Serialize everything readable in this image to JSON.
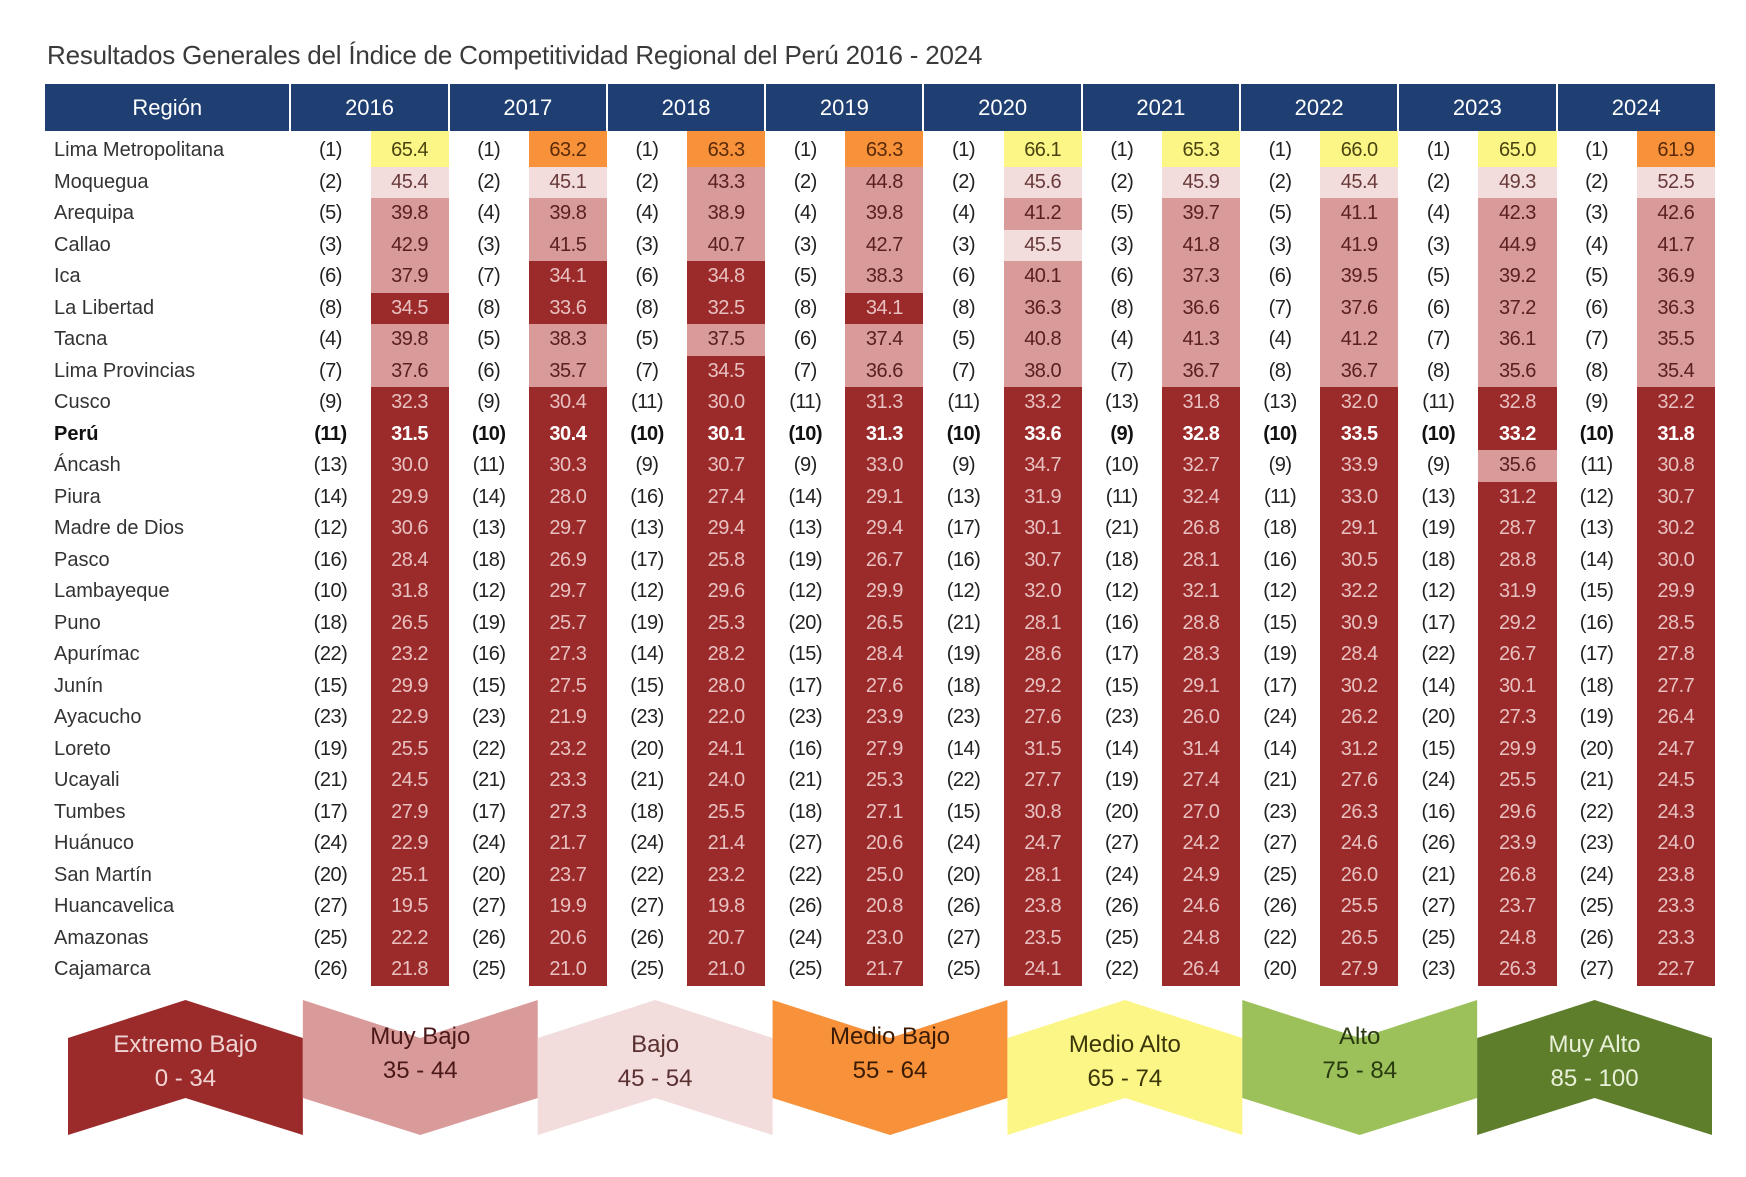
{
  "title": "Resultados Generales del Índice de Competitividad Regional del Perú 2016 - 2024",
  "table": {
    "region_header": "Región",
    "years": [
      "2016",
      "2017",
      "2018",
      "2019",
      "2020",
      "2021",
      "2022",
      "2023",
      "2024"
    ],
    "rows": [
      {
        "region": "Lima Metropolitana",
        "ranks": [
          "(1)",
          "(1)",
          "(1)",
          "(1)",
          "(1)",
          "(1)",
          "(1)",
          "(1)",
          "(1)"
        ],
        "scores": [
          "65.4",
          "63.2",
          "63.3",
          "63.3",
          "66.1",
          "65.3",
          "66.0",
          "65.0",
          "61.9"
        ]
      },
      {
        "region": "Moquegua",
        "ranks": [
          "(2)",
          "(2)",
          "(2)",
          "(2)",
          "(2)",
          "(2)",
          "(2)",
          "(2)",
          "(2)"
        ],
        "scores": [
          "45.4",
          "45.1",
          "43.3",
          "44.8",
          "45.6",
          "45.9",
          "45.4",
          "49.3",
          "52.5"
        ]
      },
      {
        "region": "Arequipa",
        "ranks": [
          "(5)",
          "(4)",
          "(4)",
          "(4)",
          "(4)",
          "(5)",
          "(5)",
          "(4)",
          "(3)"
        ],
        "scores": [
          "39.8",
          "39.8",
          "38.9",
          "39.8",
          "41.2",
          "39.7",
          "41.1",
          "42.3",
          "42.6"
        ]
      },
      {
        "region": "Callao",
        "ranks": [
          "(3)",
          "(3)",
          "(3)",
          "(3)",
          "(3)",
          "(3)",
          "(3)",
          "(3)",
          "(4)"
        ],
        "scores": [
          "42.9",
          "41.5",
          "40.7",
          "42.7",
          "45.5",
          "41.8",
          "41.9",
          "44.9",
          "41.7"
        ]
      },
      {
        "region": "Ica",
        "ranks": [
          "(6)",
          "(7)",
          "(6)",
          "(5)",
          "(6)",
          "(6)",
          "(6)",
          "(5)",
          "(5)"
        ],
        "scores": [
          "37.9",
          "34.1",
          "34.8",
          "38.3",
          "40.1",
          "37.3",
          "39.5",
          "39.2",
          "36.9"
        ]
      },
      {
        "region": "La Libertad",
        "ranks": [
          "(8)",
          "(8)",
          "(8)",
          "(8)",
          "(8)",
          "(8)",
          "(7)",
          "(6)",
          "(6)"
        ],
        "scores": [
          "34.5",
          "33.6",
          "32.5",
          "34.1",
          "36.3",
          "36.6",
          "37.6",
          "37.2",
          "36.3"
        ]
      },
      {
        "region": "Tacna",
        "ranks": [
          "(4)",
          "(5)",
          "(5)",
          "(6)",
          "(5)",
          "(4)",
          "(4)",
          "(7)",
          "(7)"
        ],
        "scores": [
          "39.8",
          "38.3",
          "37.5",
          "37.4",
          "40.8",
          "41.3",
          "41.2",
          "36.1",
          "35.5"
        ]
      },
      {
        "region": "Lima Provincias",
        "ranks": [
          "(7)",
          "(6)",
          "(7)",
          "(7)",
          "(7)",
          "(7)",
          "(8)",
          "(8)",
          "(8)"
        ],
        "scores": [
          "37.6",
          "35.7",
          "34.5",
          "36.6",
          "38.0",
          "36.7",
          "36.7",
          "35.6",
          "35.4"
        ]
      },
      {
        "region": "Cusco",
        "ranks": [
          "(9)",
          "(9)",
          "(11)",
          "(11)",
          "(11)",
          "(13)",
          "(13)",
          "(11)",
          "(9)"
        ],
        "scores": [
          "32.3",
          "30.4",
          "30.0",
          "31.3",
          "33.2",
          "31.8",
          "32.0",
          "32.8",
          "32.2"
        ]
      },
      {
        "region": "Perú",
        "ranks": [
          "(11)",
          "(10)",
          "(10)",
          "(10)",
          "(10)",
          "(9)",
          "(10)",
          "(10)",
          "(10)"
        ],
        "scores": [
          "31.5",
          "30.4",
          "30.1",
          "31.3",
          "33.6",
          "32.8",
          "33.5",
          "33.2",
          "31.8"
        ]
      },
      {
        "region": "Áncash",
        "ranks": [
          "(13)",
          "(11)",
          "(9)",
          "(9)",
          "(9)",
          "(10)",
          "(9)",
          "(9)",
          "(11)"
        ],
        "scores": [
          "30.0",
          "30.3",
          "30.7",
          "33.0",
          "34.7",
          "32.7",
          "33.9",
          "35.6",
          "30.8"
        ]
      },
      {
        "region": "Piura",
        "ranks": [
          "(14)",
          "(14)",
          "(16)",
          "(14)",
          "(13)",
          "(11)",
          "(11)",
          "(13)",
          "(12)"
        ],
        "scores": [
          "29.9",
          "28.0",
          "27.4",
          "29.1",
          "31.9",
          "32.4",
          "33.0",
          "31.2",
          "30.7"
        ]
      },
      {
        "region": "Madre de Dios",
        "ranks": [
          "(12)",
          "(13)",
          "(13)",
          "(13)",
          "(17)",
          "(21)",
          "(18)",
          "(19)",
          "(13)"
        ],
        "scores": [
          "30.6",
          "29.7",
          "29.4",
          "29.4",
          "30.1",
          "26.8",
          "29.1",
          "28.7",
          "30.2"
        ]
      },
      {
        "region": "Pasco",
        "ranks": [
          "(16)",
          "(18)",
          "(17)",
          "(19)",
          "(16)",
          "(18)",
          "(16)",
          "(18)",
          "(14)"
        ],
        "scores": [
          "28.4",
          "26.9",
          "25.8",
          "26.7",
          "30.7",
          "28.1",
          "30.5",
          "28.8",
          "30.0"
        ]
      },
      {
        "region": "Lambayeque",
        "ranks": [
          "(10)",
          "(12)",
          "(12)",
          "(12)",
          "(12)",
          "(12)",
          "(12)",
          "(12)",
          "(15)"
        ],
        "scores": [
          "31.8",
          "29.7",
          "29.6",
          "29.9",
          "32.0",
          "32.1",
          "32.2",
          "31.9",
          "29.9"
        ]
      },
      {
        "region": "Puno",
        "ranks": [
          "(18)",
          "(19)",
          "(19)",
          "(20)",
          "(21)",
          "(16)",
          "(15)",
          "(17)",
          "(16)"
        ],
        "scores": [
          "26.5",
          "25.7",
          "25.3",
          "26.5",
          "28.1",
          "28.8",
          "30.9",
          "29.2",
          "28.5"
        ]
      },
      {
        "region": "Apurímac",
        "ranks": [
          "(22)",
          "(16)",
          "(14)",
          "(15)",
          "(19)",
          "(17)",
          "(19)",
          "(22)",
          "(17)"
        ],
        "scores": [
          "23.2",
          "27.3",
          "28.2",
          "28.4",
          "28.6",
          "28.3",
          "28.4",
          "26.7",
          "27.8"
        ]
      },
      {
        "region": "Junín",
        "ranks": [
          "(15)",
          "(15)",
          "(15)",
          "(17)",
          "(18)",
          "(15)",
          "(17)",
          "(14)",
          "(18)"
        ],
        "scores": [
          "29.9",
          "27.5",
          "28.0",
          "27.6",
          "29.2",
          "29.1",
          "30.2",
          "30.1",
          "27.7"
        ]
      },
      {
        "region": "Ayacucho",
        "ranks": [
          "(23)",
          "(23)",
          "(23)",
          "(23)",
          "(23)",
          "(23)",
          "(24)",
          "(20)",
          "(19)"
        ],
        "scores": [
          "22.9",
          "21.9",
          "22.0",
          "23.9",
          "27.6",
          "26.0",
          "26.2",
          "27.3",
          "26.4"
        ]
      },
      {
        "region": "Loreto",
        "ranks": [
          "(19)",
          "(22)",
          "(20)",
          "(16)",
          "(14)",
          "(14)",
          "(14)",
          "(15)",
          "(20)"
        ],
        "scores": [
          "25.5",
          "23.2",
          "24.1",
          "27.9",
          "31.5",
          "31.4",
          "31.2",
          "29.9",
          "24.7"
        ]
      },
      {
        "region": "Ucayali",
        "ranks": [
          "(21)",
          "(21)",
          "(21)",
          "(21)",
          "(22)",
          "(19)",
          "(21)",
          "(24)",
          "(21)"
        ],
        "scores": [
          "24.5",
          "23.3",
          "24.0",
          "25.3",
          "27.7",
          "27.4",
          "27.6",
          "25.5",
          "24.5"
        ]
      },
      {
        "region": "Tumbes",
        "ranks": [
          "(17)",
          "(17)",
          "(18)",
          "(18)",
          "(15)",
          "(20)",
          "(23)",
          "(16)",
          "(22)"
        ],
        "scores": [
          "27.9",
          "27.3",
          "25.5",
          "27.1",
          "30.8",
          "27.0",
          "26.3",
          "29.6",
          "24.3"
        ]
      },
      {
        "region": "Huánuco",
        "ranks": [
          "(24)",
          "(24)",
          "(24)",
          "(27)",
          "(24)",
          "(27)",
          "(27)",
          "(26)",
          "(23)"
        ],
        "scores": [
          "22.9",
          "21.7",
          "21.4",
          "20.6",
          "24.7",
          "24.2",
          "24.6",
          "23.9",
          "24.0"
        ]
      },
      {
        "region": "San Martín",
        "ranks": [
          "(20)",
          "(20)",
          "(22)",
          "(22)",
          "(20)",
          "(24)",
          "(25)",
          "(21)",
          "(24)"
        ],
        "scores": [
          "25.1",
          "23.7",
          "23.2",
          "25.0",
          "28.1",
          "24.9",
          "26.0",
          "26.8",
          "23.8"
        ]
      },
      {
        "region": "Huancavelica",
        "ranks": [
          "(27)",
          "(27)",
          "(27)",
          "(26)",
          "(26)",
          "(26)",
          "(26)",
          "(27)",
          "(25)"
        ],
        "scores": [
          "19.5",
          "19.9",
          "19.8",
          "20.8",
          "23.8",
          "24.6",
          "25.5",
          "23.7",
          "23.3"
        ]
      },
      {
        "region": "Amazonas",
        "ranks": [
          "(25)",
          "(26)",
          "(26)",
          "(24)",
          "(27)",
          "(25)",
          "(22)",
          "(25)",
          "(26)"
        ],
        "scores": [
          "22.2",
          "20.6",
          "20.7",
          "23.0",
          "23.5",
          "24.8",
          "26.5",
          "24.8",
          "23.3"
        ]
      },
      {
        "region": "Cajamarca",
        "ranks": [
          "(26)",
          "(25)",
          "(25)",
          "(25)",
          "(25)",
          "(22)",
          "(20)",
          "(23)",
          "(27)"
        ],
        "scores": [
          "21.8",
          "21.0",
          "21.0",
          "21.7",
          "24.1",
          "26.4",
          "27.9",
          "26.3",
          "22.7"
        ]
      }
    ]
  },
  "legend": [
    {
      "name": "Extremo Bajo",
      "range": "0 - 34",
      "color": "#9b2a2a",
      "text_color": "#f0d4d4"
    },
    {
      "name": "Muy Bajo",
      "range": "35 - 44",
      "color": "#d99a9a",
      "text_color": "#4a1818"
    },
    {
      "name": "Bajo",
      "range": "45 - 54",
      "color": "#f2dcdc",
      "text_color": "#5a3030"
    },
    {
      "name": "Medio Bajo",
      "range": "55 - 64",
      "color": "#f7923a",
      "text_color": "#3a1a04"
    },
    {
      "name": "Medio Alto",
      "range": "65 - 74",
      "color": "#fcf687",
      "text_color": "#3a3608"
    },
    {
      "name": "Alto",
      "range": "75 - 84",
      "color": "#9cc15a",
      "text_color": "#2a3a10"
    },
    {
      "name": "Muy Alto",
      "range": "85 - 100",
      "color": "#5e7e2c",
      "text_color": "#e8f0d8"
    }
  ],
  "bold_region": "Perú"
}
